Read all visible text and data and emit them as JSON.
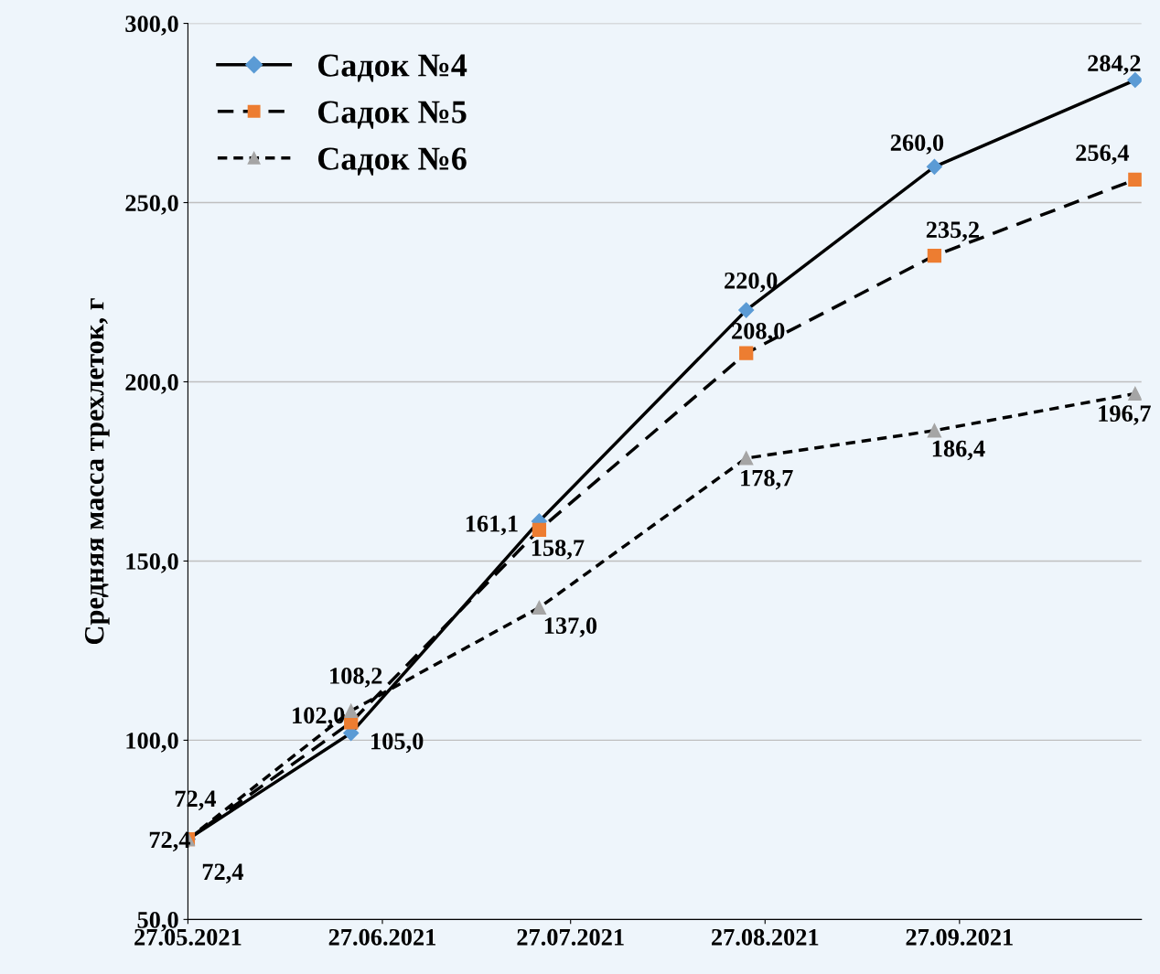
{
  "chart_data": {
    "type": "line",
    "ylabel": "Средняя масса трехлеток, г",
    "x": [
      "2021-05-27",
      "2021-06-22",
      "2021-07-22",
      "2021-08-24",
      "2021-09-23",
      "2021-10-25"
    ],
    "series": [
      {
        "name": "Садок №4",
        "color": "#5b9bd5",
        "values": [
          72.4,
          102.0,
          161.1,
          220.0,
          260.0,
          284.2
        ],
        "value_labels": [
          "72,4",
          "102,0",
          "161,1",
          "220,0",
          "260,0",
          "284,2"
        ],
        "marker": "diamond",
        "line_style": "solid"
      },
      {
        "name": "Садок №5",
        "color": "#ed7d31",
        "values": [
          72.4,
          105.0,
          158.7,
          208.0,
          235.2,
          256.4
        ],
        "value_labels": [
          "72,4",
          "105,0",
          "158,7",
          "208,0",
          "235,2",
          "256,4"
        ],
        "marker": "square",
        "line_style": "dashed"
      },
      {
        "name": "Садок №6",
        "color": "#a5a5a5",
        "values": [
          72.4,
          108.2,
          137.0,
          178.7,
          186.4,
          196.7
        ],
        "value_labels": [
          "72,4",
          "108,2",
          "137,0",
          "178,7",
          "186,4",
          "196,7"
        ],
        "marker": "triangle",
        "line_style": "dotted"
      }
    ],
    "xlim": [
      "2021-05-27",
      "2021-10-26"
    ],
    "xticks": [
      {
        "value": "2021-05-27",
        "label": "27.05.2021"
      },
      {
        "value": "2021-06-27",
        "label": "27.06.2021"
      },
      {
        "value": "2021-07-27",
        "label": "27.07.2021"
      },
      {
        "value": "2021-08-27",
        "label": "27.08.2021"
      },
      {
        "value": "2021-09-27",
        "label": "27.09.2021"
      }
    ],
    "ylim": [
      50,
      300
    ],
    "yticks": [
      {
        "value": 50,
        "label": "50,0"
      },
      {
        "value": 100,
        "label": "100,0"
      },
      {
        "value": 150,
        "label": "150,0"
      },
      {
        "value": 200,
        "label": "200,0"
      },
      {
        "value": 250,
        "label": "250,0"
      },
      {
        "value": 300,
        "label": "300,0"
      }
    ],
    "grid": "y",
    "legend": "top left"
  }
}
